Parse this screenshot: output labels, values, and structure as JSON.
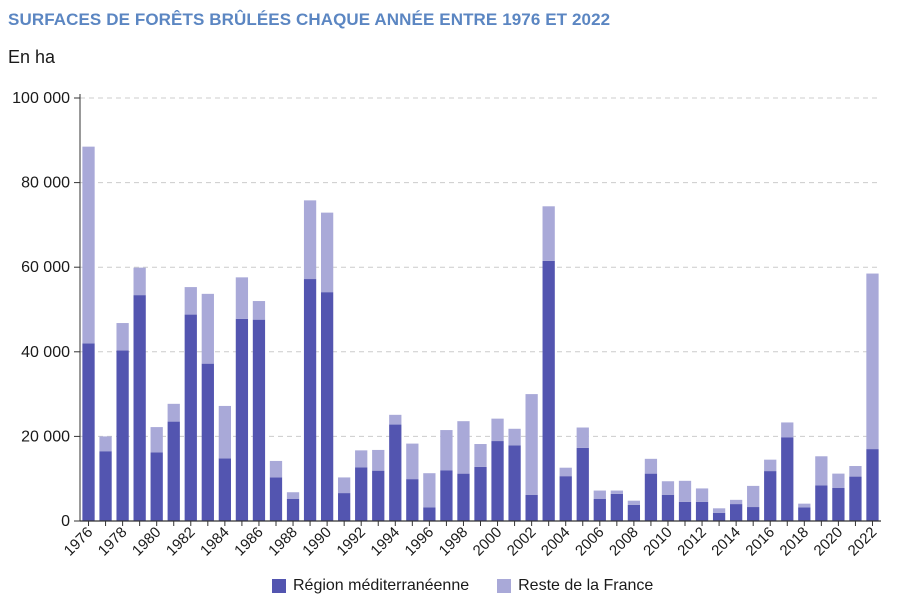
{
  "title": "SURFACES DE FORÊTS BRÛLÉES CHAQUE ANNÉE ENTRE 1976 ET 2022",
  "unit_label": "En ha",
  "colors": {
    "mediterranee": "#5355b0",
    "reste": "#a9a9d8",
    "grid": "#cccccc",
    "axis": "#333333"
  },
  "chart_data": {
    "type": "bar",
    "stacked": true,
    "ylim": [
      0,
      100000
    ],
    "yticks": [
      "0",
      "20 000",
      "40 000",
      "60 000",
      "80 000",
      "100 000"
    ],
    "ytick_values": [
      0,
      20000,
      40000,
      60000,
      80000,
      100000
    ],
    "grid": true,
    "legend_position": "bottom",
    "categories": [
      "1976",
      "1977",
      "1978",
      "1979",
      "1980",
      "1981",
      "1982",
      "1983",
      "1984",
      "1985",
      "1986",
      "1987",
      "1988",
      "1989",
      "1990",
      "1991",
      "1992",
      "1993",
      "1994",
      "1995",
      "1996",
      "1997",
      "1998",
      "1999",
      "2000",
      "2001",
      "2002",
      "2003",
      "2004",
      "2005",
      "2006",
      "2007",
      "2008",
      "2009",
      "2010",
      "2011",
      "2012",
      "2013",
      "2014",
      "2015",
      "2016",
      "2017",
      "2018",
      "2019",
      "2020",
      "2021",
      "2022"
    ],
    "xtick_labels": [
      "1976",
      "",
      "1978",
      "",
      "1980",
      "",
      "1982",
      "",
      "1984",
      "",
      "1986",
      "",
      "1988",
      "",
      "1990",
      "",
      "1992",
      "",
      "1994",
      "",
      "1996",
      "",
      "1998",
      "",
      "2000",
      "",
      "2002",
      "",
      "2004",
      "",
      "2006",
      "",
      "2008",
      "",
      "2010",
      "",
      "2012",
      "",
      "2014",
      "",
      "2016",
      "",
      "2018",
      "",
      "2020",
      "",
      "2022"
    ],
    "series": [
      {
        "name": "Région méditerranéenne",
        "color_key": "mediterranee",
        "values": [
          42000,
          16500,
          40300,
          53400,
          16200,
          23500,
          48800,
          37200,
          14800,
          47800,
          47600,
          10300,
          5200,
          57200,
          54100,
          6600,
          12700,
          11900,
          22800,
          9900,
          3200,
          12000,
          11200,
          12800,
          18900,
          17900,
          6200,
          61500,
          10600,
          17300,
          5200,
          6400,
          3800,
          11200,
          6200,
          4500,
          4500,
          1900,
          4000,
          3300,
          11800,
          19800,
          3200,
          8400,
          7800,
          10500,
          17000
        ]
      },
      {
        "name": "Reste de la France",
        "color_key": "reste",
        "values": [
          46500,
          3500,
          6500,
          6500,
          6000,
          4200,
          6500,
          16500,
          12400,
          9800,
          4400,
          3900,
          1600,
          18600,
          18800,
          3700,
          4000,
          4900,
          2300,
          8400,
          8100,
          9500,
          12400,
          5400,
          5300,
          3900,
          23800,
          12900,
          2000,
          4800,
          2000,
          800,
          1000,
          3500,
          3200,
          5000,
          3200,
          1100,
          1000,
          5000,
          2700,
          3500,
          900,
          6900,
          3400,
          2500,
          41500
        ]
      }
    ]
  }
}
